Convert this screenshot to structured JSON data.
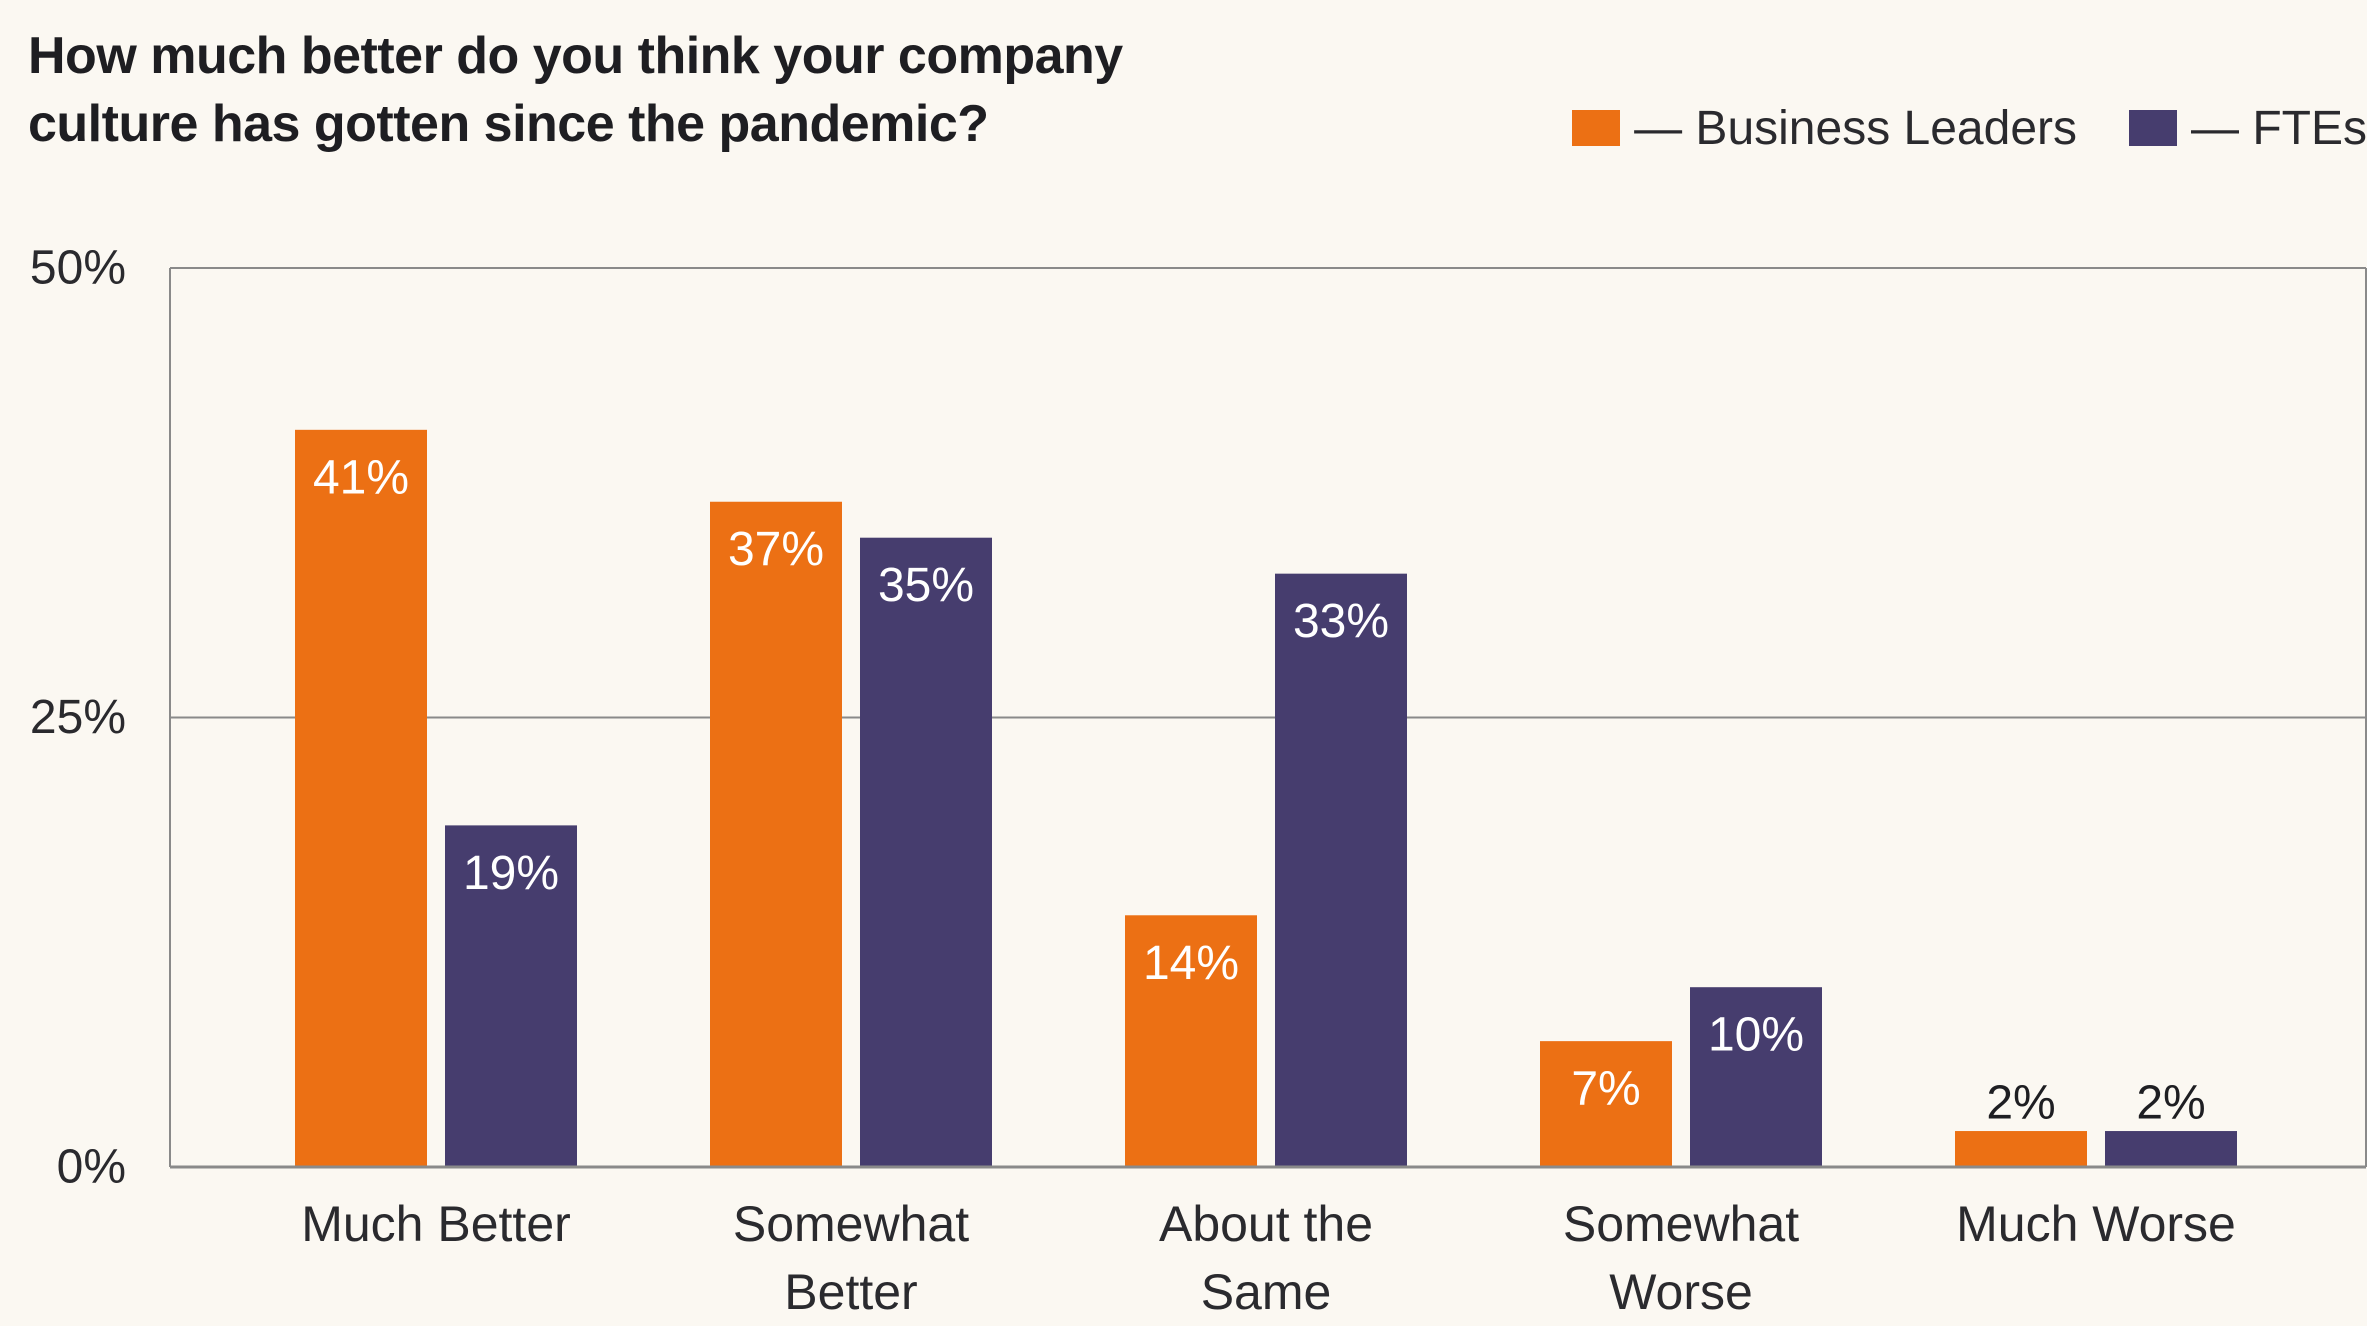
{
  "chart_data": {
    "type": "bar",
    "title": "How much better do you think your company culture has gotten since the pandemic?",
    "title_lines": [
      "How much better do you think your company",
      "culture has gotten since the pandemic?"
    ],
    "categories": [
      "Much Better",
      "Somewhat Better",
      "About the Same",
      "Somewhat Worse",
      "Much Worse"
    ],
    "category_lines": [
      [
        "Much Better"
      ],
      [
        "Somewhat",
        "Better"
      ],
      [
        "About the",
        "Same"
      ],
      [
        "Somewhat",
        "Worse"
      ],
      [
        "Much Worse"
      ]
    ],
    "series": [
      {
        "name": "Business Leaders",
        "legend_label": "— Business Leaders",
        "color": "#ec7014",
        "values": [
          41,
          37,
          14,
          7,
          2
        ],
        "labels": [
          "41%",
          "37%",
          "14%",
          "7%",
          "2%"
        ]
      },
      {
        "name": "FTEs",
        "legend_label": "— FTEs",
        "color": "#463d6e",
        "values": [
          19,
          35,
          33,
          10,
          2
        ],
        "labels": [
          "19%",
          "35%",
          "33%",
          "10%",
          "2%"
        ]
      }
    ],
    "ylim": [
      0,
      50
    ],
    "yticks": [
      0,
      25,
      50
    ],
    "ytick_labels": [
      "0%",
      "25%",
      "50%"
    ],
    "xlabel": "",
    "ylabel": "",
    "grid": true,
    "legend_position": "top-right"
  },
  "colors": {
    "background": "#fbf8f2",
    "axis": "#8a8a8a",
    "text": "#1e1e22",
    "label_inside": "#ffffff"
  }
}
